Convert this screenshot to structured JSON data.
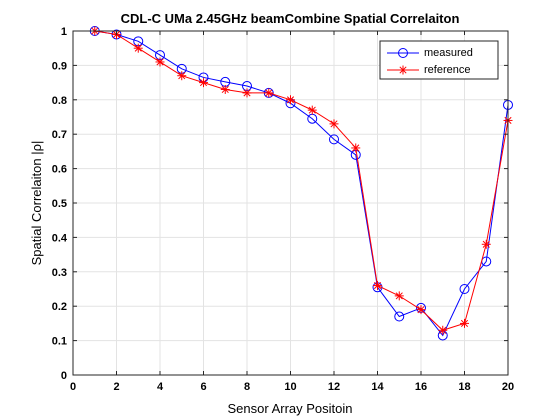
{
  "chart_data": {
    "type": "line",
    "title": "CDL-C UMa 2.45GHz beamCombine Spatial Correlaiton",
    "xlabel": "Sensor Array Positoin",
    "ylabel": "Spatial Correlaiton |ρ|",
    "xlim": [
      0,
      20
    ],
    "ylim": [
      0,
      1
    ],
    "xticks": [
      0,
      2,
      4,
      6,
      8,
      10,
      12,
      14,
      16,
      18,
      20
    ],
    "yticks": [
      0,
      0.1,
      0.2,
      0.3,
      0.4,
      0.5,
      0.6,
      0.7,
      0.8,
      0.9,
      1
    ],
    "grid": true,
    "legend_position": "top-right",
    "x": [
      1,
      2,
      3,
      4,
      5,
      6,
      7,
      8,
      9,
      10,
      11,
      12,
      13,
      14,
      15,
      16,
      17,
      18,
      19,
      20
    ],
    "series": [
      {
        "name": "measured",
        "color": "#0000ff",
        "marker": "circle",
        "values": [
          1.0,
          0.99,
          0.97,
          0.93,
          0.89,
          0.865,
          0.852,
          0.84,
          0.82,
          0.79,
          0.745,
          0.685,
          0.64,
          0.255,
          0.17,
          0.195,
          0.115,
          0.25,
          0.33,
          0.785
        ]
      },
      {
        "name": "reference",
        "color": "#ff0000",
        "marker": "asterisk",
        "values": [
          1.0,
          0.99,
          0.95,
          0.91,
          0.87,
          0.85,
          0.83,
          0.82,
          0.82,
          0.8,
          0.77,
          0.73,
          0.66,
          0.26,
          0.23,
          0.19,
          0.13,
          0.15,
          0.38,
          0.74
        ]
      }
    ]
  }
}
